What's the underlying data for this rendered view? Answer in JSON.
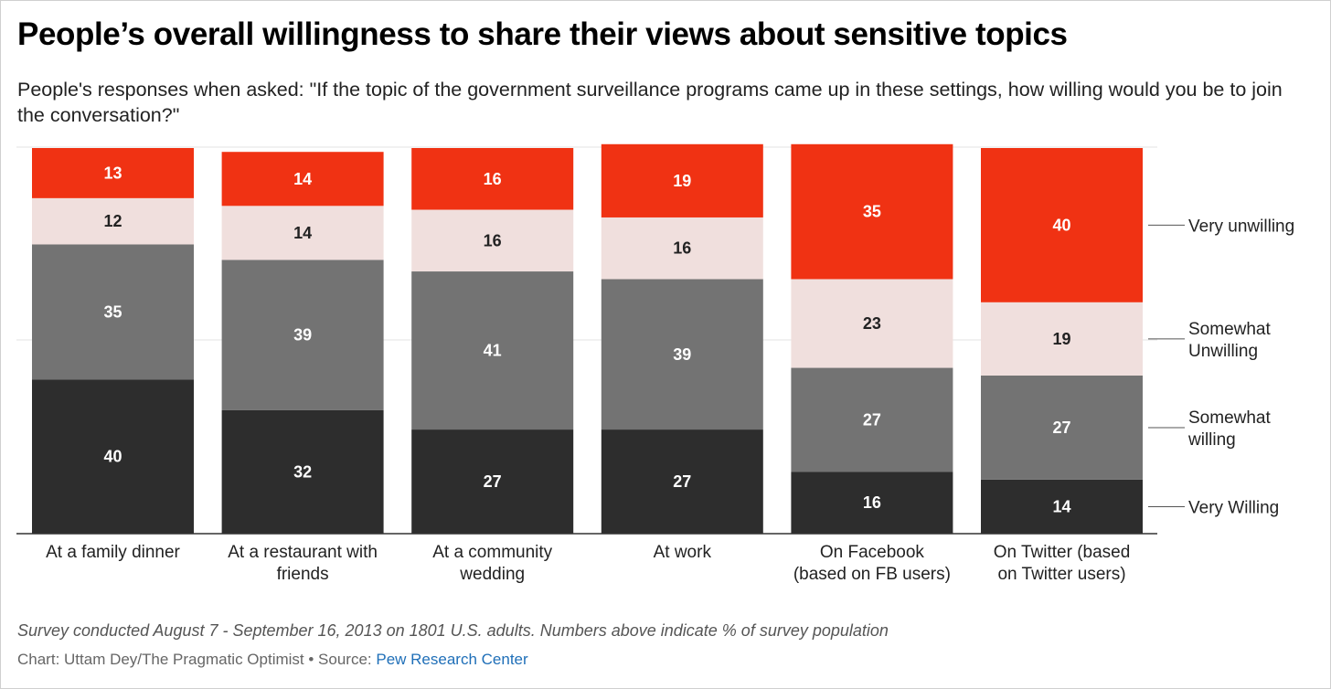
{
  "title": "People’s overall willingness to share their views about sensitive topics",
  "subtitle": "People's responses when asked: \"If the topic of the government surveillance programs came up in these settings, how willing would you be to join the conversation?\"",
  "footnote": "Survey conducted August 7 - September 16, 2013 on 1801 U.S. adults. Numbers above indicate % of survey population",
  "credit": {
    "prefix": "Chart: Uttam Dey/The Pragmatic Optimist",
    "separator": " • ",
    "source_label": "Source: ",
    "source_name": "Pew Research Center"
  },
  "colors": {
    "very_willing": "#2d2d2d",
    "somewhat_willing": "#737373",
    "somewhat_unwilling": "#f0dfdd",
    "very_unwilling": "#f03213",
    "label_dark_text": "#ffffff",
    "label_light_text": "#222222",
    "gridline": "#e3e3e3",
    "axis": "#333333"
  },
  "chart_data": {
    "type": "bar",
    "stacked": true,
    "categories": [
      [
        "At a family dinner"
      ],
      [
        "At a restaurant with",
        "friends"
      ],
      [
        "At a community",
        "wedding"
      ],
      [
        "At work"
      ],
      [
        "On Facebook",
        "(based on FB users)"
      ],
      [
        "On Twitter (based",
        "on Twitter users)"
      ]
    ],
    "series": [
      {
        "name": "Very Willing",
        "legend": [
          "Very Willing"
        ],
        "color_key": "very_willing",
        "values": [
          40,
          32,
          27,
          27,
          16,
          14
        ]
      },
      {
        "name": "Somewhat willing",
        "legend": [
          "Somewhat",
          "willing"
        ],
        "color_key": "somewhat_willing",
        "values": [
          35,
          39,
          41,
          39,
          27,
          27
        ]
      },
      {
        "name": "Somewhat Unwilling",
        "legend": [
          "Somewhat",
          "Unwilling"
        ],
        "color_key": "somewhat_unwilling",
        "values": [
          12,
          14,
          16,
          16,
          23,
          19
        ]
      },
      {
        "name": "Very unwilling",
        "legend": [
          "Very unwilling"
        ],
        "color_key": "very_unwilling",
        "values": [
          13,
          14,
          16,
          19,
          35,
          40
        ]
      }
    ],
    "legend_position": "right",
    "grid": true,
    "ylim": [
      0,
      100
    ]
  }
}
